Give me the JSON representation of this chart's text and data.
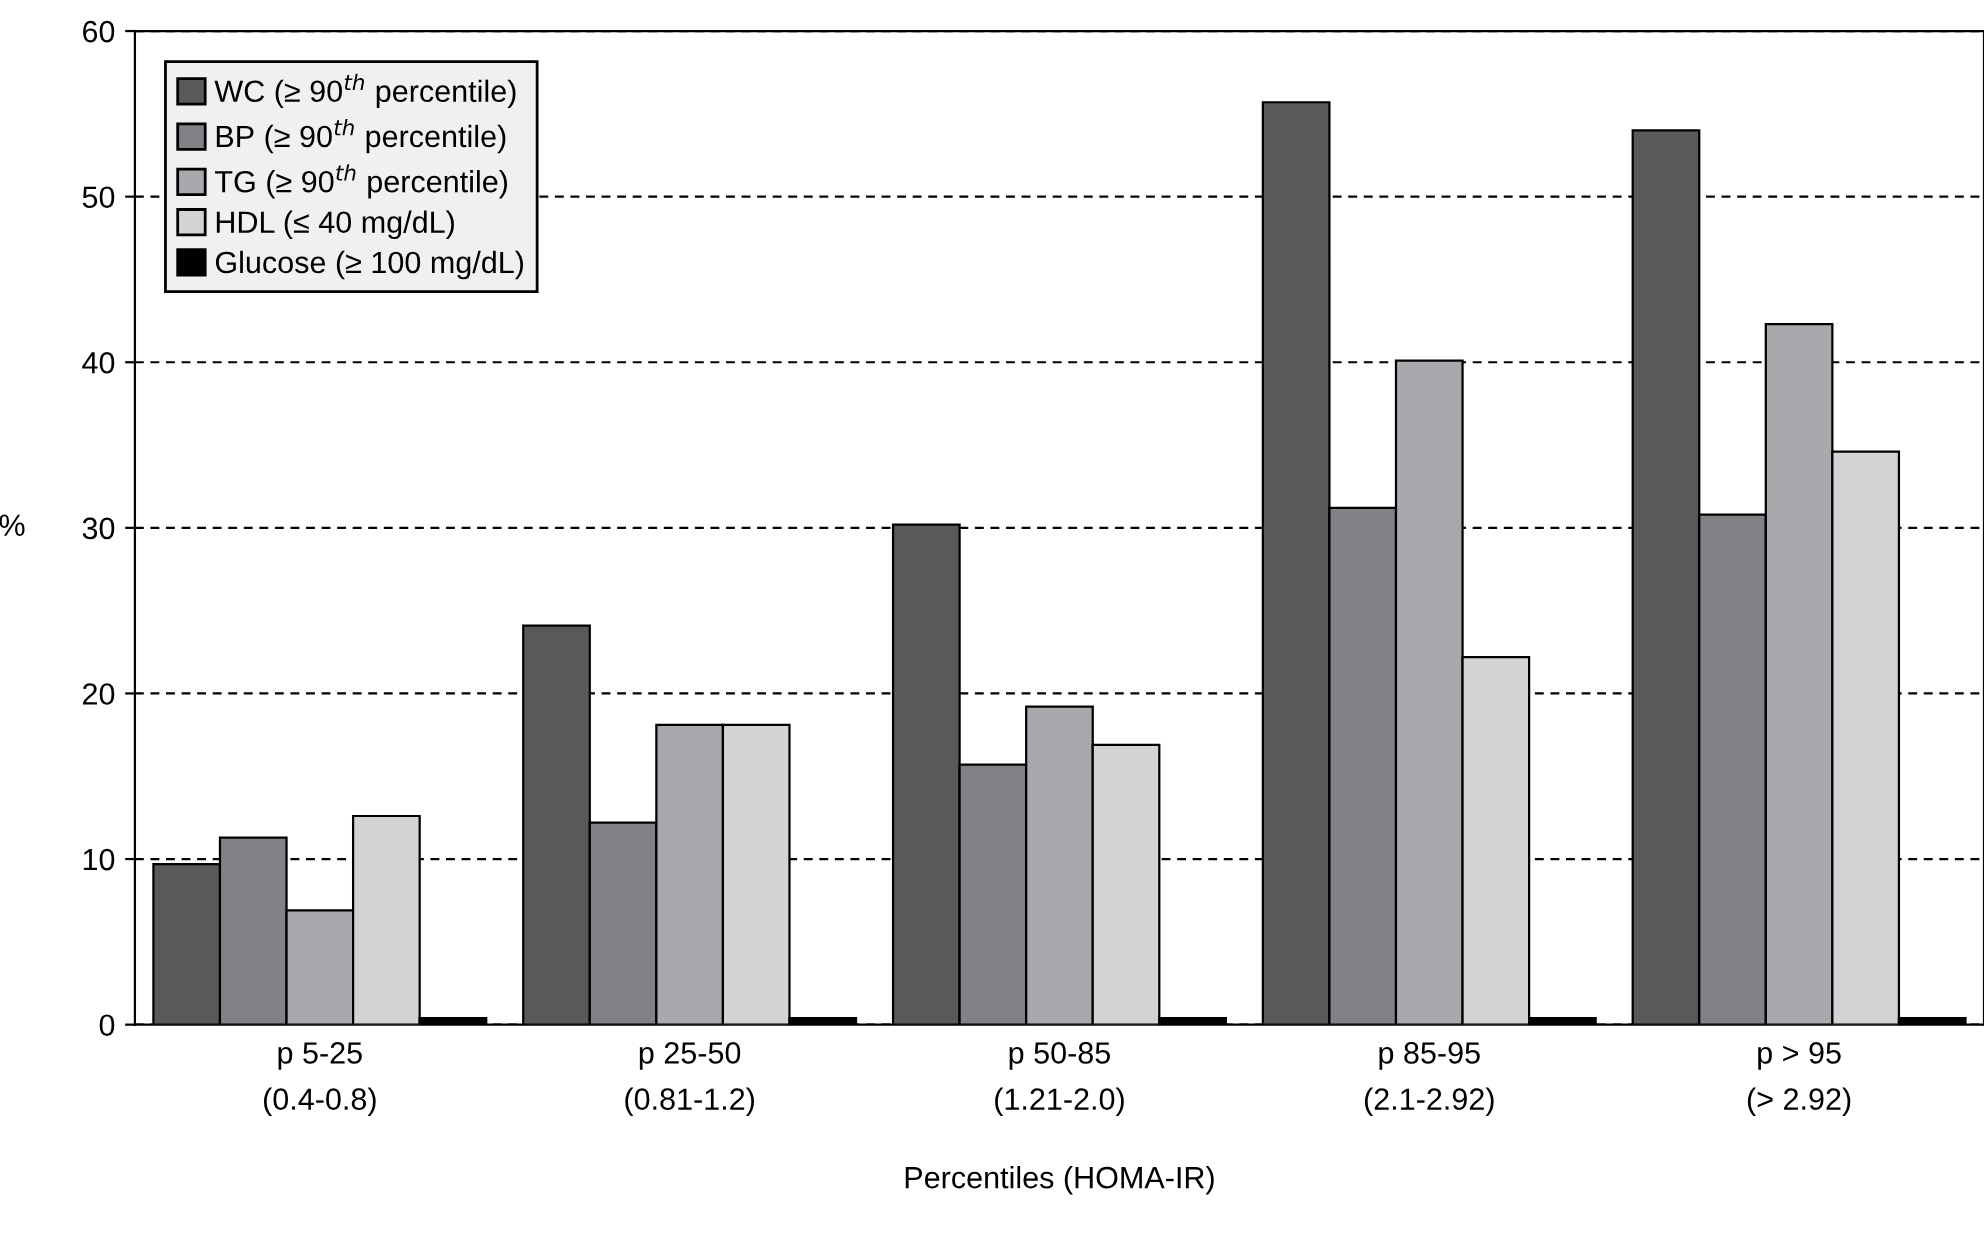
{
  "chart_data": {
    "type": "bar",
    "xlabel": "Percentiles (HOMA-IR)",
    "ylabel": "%",
    "categories": [
      "p 5-25\n(0.4-0.8)",
      "p 25-50\n(0.81-1.2)",
      "p 50-85\n(1.21-2.0)",
      "p 85-95\n(2.1-2.92)",
      "p > 95\n(> 2.92)"
    ],
    "series": [
      {
        "name": "WC (≥ 90$^{th}$ percentile)",
        "color": "#58595b",
        "values": [
          9.7,
          24.1,
          30.2,
          55.7,
          54.0
        ]
      },
      {
        "name": "BP (≥ 90$^{th}$ percentile)",
        "color": "#808285",
        "values": [
          11.3,
          12.2,
          15.7,
          31.2,
          30.8
        ]
      },
      {
        "name": "TG (≥ 90$^{th}$ percentile)",
        "color": "#a7a9ac",
        "values": [
          6.9,
          18.1,
          19.2,
          40.1,
          42.3
        ]
      },
      {
        "name": "HDL (≤ 40 mg/dL)",
        "color": "#d1d3d4",
        "values": [
          12.6,
          18.1,
          16.9,
          22.2,
          34.6
        ]
      },
      {
        "name": "Glucose (≥ 100 mg/dL)",
        "color": "#000000",
        "values": [
          0.4,
          0.4,
          0.4,
          0.4,
          0.4
        ]
      }
    ],
    "ylim": [
      0,
      60
    ],
    "yticks": [
      0,
      10,
      20,
      30,
      40,
      50,
      60
    ],
    "grid": "y",
    "line_style": "dashed",
    "legend": "top left"
  }
}
